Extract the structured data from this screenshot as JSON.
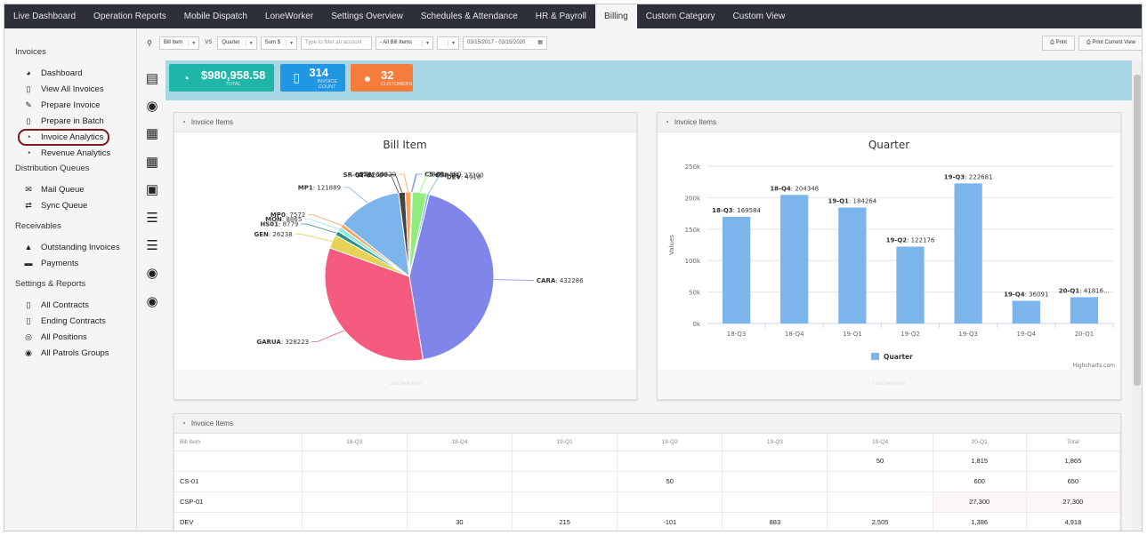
{
  "topnav": {
    "tabs": [
      "Live Dashboard",
      "Operation Reports",
      "Mobile Dispatch",
      "LoneWorker",
      "Settings Overview",
      "Schedules & Attendance",
      "HR & Payroll",
      "Billing",
      "Custom Category",
      "Custom View"
    ],
    "active": "Billing"
  },
  "sidebar": {
    "invoices_title": "Invoices",
    "invoices": [
      "Dashboard",
      "View All Invoices",
      "Prepare Invoice",
      "Prepare in Batch",
      "Invoice Analytics",
      "Revenue Analytics"
    ],
    "distribution_title": "Distribution Queues",
    "distribution": [
      "Mail Queue",
      "Sync Queue"
    ],
    "receivables_title": "Receivables",
    "receivables": [
      "Outstanding Invoices",
      "Payments"
    ],
    "settings_title": "Settings & Reports",
    "settings": [
      "All Contracts",
      "Ending Contracts",
      "All Positions",
      "All Patrols Groups"
    ]
  },
  "toolbar": {
    "group_by": "Bill Item",
    "vs_label": "VS",
    "vs": "Quarter",
    "measure": "Sum $",
    "filter_placeholder": "Type to filter an account",
    "items_filter": "- All Bill Items",
    "date_range": "03/15/2017 - 03/15/2020",
    "print_label": "Print",
    "print_view_label": "Print Current View"
  },
  "stats": [
    {
      "value": "$980,958.58",
      "label": "TOTAL",
      "color": "#1fb5a8"
    },
    {
      "value": "314",
      "label": "INVOICE COUNT",
      "color": "#2196e3"
    },
    {
      "value": "32",
      "label": "CUSTOMERS",
      "color": "#f57c3a"
    }
  ],
  "panels": {
    "pie_header": "Invoice Items",
    "bar_header": "Invoice Items",
    "table_header": "Invoice Items",
    "footer_text": "Last Time Ever"
  },
  "chart_data": [
    {
      "type": "pie",
      "title": "Bill Item",
      "slices": [
        {
          "label": "CARA",
          "value": 432286,
          "color": "#8085e9"
        },
        {
          "label": "GARUA",
          "value": 328223,
          "color": "#f45b7f"
        },
        {
          "label": "GEN",
          "value": 26238,
          "color": "#e4d354"
        },
        {
          "label": "HS01",
          "value": 8779,
          "color": "#2b908f"
        },
        {
          "label": "MON",
          "value": 8865,
          "color": "#91e8e1"
        },
        {
          "label": "MP0",
          "value": 7572,
          "color": "#f7a35c"
        },
        {
          "label": "MP1",
          "value": 121889,
          "color": "#7cb5ec"
        },
        {
          "label": "OT-01",
          "value": 0,
          "color": "#434348"
        },
        {
          "label": "SR-02",
          "value": 12600,
          "color": "#434348"
        },
        {
          "label": "STA",
          "value": 10820,
          "color": "#f7a35c"
        },
        {
          "label": "",
          "value": 1865,
          "color": "#8085e9"
        },
        {
          "label": "CS-01",
          "value": 650,
          "color": "#7cb5ec"
        },
        {
          "label": "CSP-01",
          "value": 27300,
          "color": "#90ed7d"
        },
        {
          "label": "DEV",
          "value": 4918,
          "color": "#7cb5ec"
        }
      ]
    },
    {
      "type": "bar",
      "title": "Quarter",
      "ylabel": "Values",
      "categories": [
        "18-Q3",
        "18-Q4",
        "19-Q1",
        "19-Q2",
        "19-Q3",
        "19-Q4",
        "20-Q1"
      ],
      "series": [
        {
          "name": "Quarter",
          "values": [
            169584,
            204348,
            184264,
            122176,
            222681,
            36091,
            41816
          ]
        }
      ],
      "data_labels": [
        "169584",
        "204348",
        "184264",
        "122176",
        "222681",
        "36091",
        "41816…"
      ],
      "ylim": [
        0,
        250000
      ],
      "yticks": [
        "0k",
        "50k",
        "100k",
        "150k",
        "200k",
        "250k"
      ],
      "credits": "Highcharts.com",
      "legend": "bottom-center",
      "grid": true
    }
  ],
  "table": {
    "columns": [
      "Bill Item",
      "18-Q3",
      "18-Q4",
      "19-Q1",
      "19-Q2",
      "19-Q3",
      "19-Q4",
      "20-Q1",
      "Total"
    ],
    "rows": [
      [
        "",
        "",
        "",
        "",
        "",
        "",
        "50",
        "1,815",
        "1,865"
      ],
      [
        "CS-01",
        "",
        "",
        "",
        "50",
        "",
        "",
        "600",
        "650"
      ],
      [
        "CSP-01",
        "",
        "",
        "",
        "",
        "",
        "",
        "27,300",
        "27,300"
      ],
      [
        "DEV",
        "",
        "30",
        "215",
        "-101",
        "883",
        "2,505",
        "1,386",
        "4,918"
      ]
    ]
  }
}
